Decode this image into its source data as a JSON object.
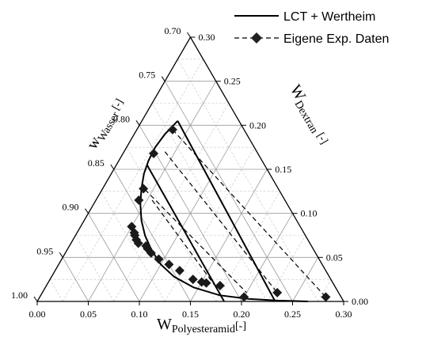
{
  "chart_data": {
    "type": "scatter",
    "title": "",
    "diagram": "ternary",
    "axes": {
      "bottom": {
        "label_main": "W",
        "label_sub": "Polyesteramid",
        "label_suffix": "[-]",
        "ticks": [
          "0.00",
          "0.05",
          "0.10",
          "0.15",
          "0.20",
          "0.25",
          "0.30"
        ]
      },
      "right": {
        "label_main": "W",
        "label_sub": "Dextran",
        "label_suffix": "[-]",
        "ticks": [
          "0.00",
          "0.05",
          "0.10",
          "0.15",
          "0.20",
          "0.25",
          "0.30"
        ]
      },
      "left": {
        "label_main": "w",
        "label_sub": "Wasser",
        "label_suffix": "[-]",
        "ticks": [
          "1.00",
          "0.95",
          "0.90",
          "0.85",
          "0.80",
          "0.75",
          "0.70"
        ]
      }
    },
    "grid": true,
    "legend": {
      "position": "top-right",
      "entries": [
        {
          "label": "LCT + Wertheim",
          "style": "solid-line"
        },
        {
          "label": "Eigene Exp. Daten",
          "style": "dashed-diamond"
        }
      ]
    },
    "series": [
      {
        "name": "LCT + Wertheim",
        "kind": "binodal",
        "points": [
          [
            0.035,
            0.205
          ],
          [
            0.03,
            0.19
          ],
          [
            0.028,
            0.175
          ],
          [
            0.029,
            0.16
          ],
          [
            0.032,
            0.145
          ],
          [
            0.038,
            0.128
          ],
          [
            0.046,
            0.11
          ],
          [
            0.056,
            0.092
          ],
          [
            0.068,
            0.075
          ],
          [
            0.083,
            0.058
          ],
          [
            0.1,
            0.042
          ],
          [
            0.12,
            0.028
          ],
          [
            0.145,
            0.016
          ],
          [
            0.175,
            0.007
          ],
          [
            0.205,
            0.003
          ],
          [
            0.235,
            0.001
          ],
          [
            0.265,
            0.0
          ]
        ]
      },
      {
        "name": "LCT + Wertheim",
        "kind": "tie-lines",
        "lines": [
          [
            [
              0.035,
              0.205
            ],
            [
              0.233,
              0.0
            ]
          ],
          [
            [
              0.03,
              0.155
            ],
            [
              0.183,
              0.0
            ]
          ]
        ]
      },
      {
        "name": "Eigene Exp. Daten",
        "kind": "tie-lines",
        "lines": [
          [
            [
              0.035,
              0.195
            ],
            [
              0.28,
              0.005
            ]
          ],
          [
            [
              0.04,
              0.17
            ],
            [
              0.23,
              0.01
            ]
          ],
          [
            [
              0.042,
              0.127
            ],
            [
              0.2,
              0.01
            ]
          ],
          [
            [
              0.055,
              0.115
            ],
            [
              0.165,
              0.018
            ]
          ]
        ]
      },
      {
        "name": "Eigene Exp. Daten",
        "kind": "points",
        "points": [
          [
            0.035,
            0.195
          ],
          [
            0.03,
            0.168
          ],
          [
            0.04,
            0.128
          ],
          [
            0.042,
            0.115
          ],
          [
            0.05,
            0.085
          ],
          [
            0.056,
            0.078
          ],
          [
            0.058,
            0.075
          ],
          [
            0.062,
            0.07
          ],
          [
            0.066,
            0.066
          ],
          [
            0.075,
            0.063
          ],
          [
            0.078,
            0.06
          ],
          [
            0.084,
            0.055
          ],
          [
            0.095,
            0.048
          ],
          [
            0.108,
            0.042
          ],
          [
            0.122,
            0.035
          ],
          [
            0.14,
            0.025
          ],
          [
            0.15,
            0.022
          ],
          [
            0.155,
            0.021
          ],
          [
            0.17,
            0.018
          ],
          [
            0.2,
            0.005
          ],
          [
            0.23,
            0.01
          ],
          [
            0.28,
            0.005
          ]
        ]
      }
    ]
  }
}
